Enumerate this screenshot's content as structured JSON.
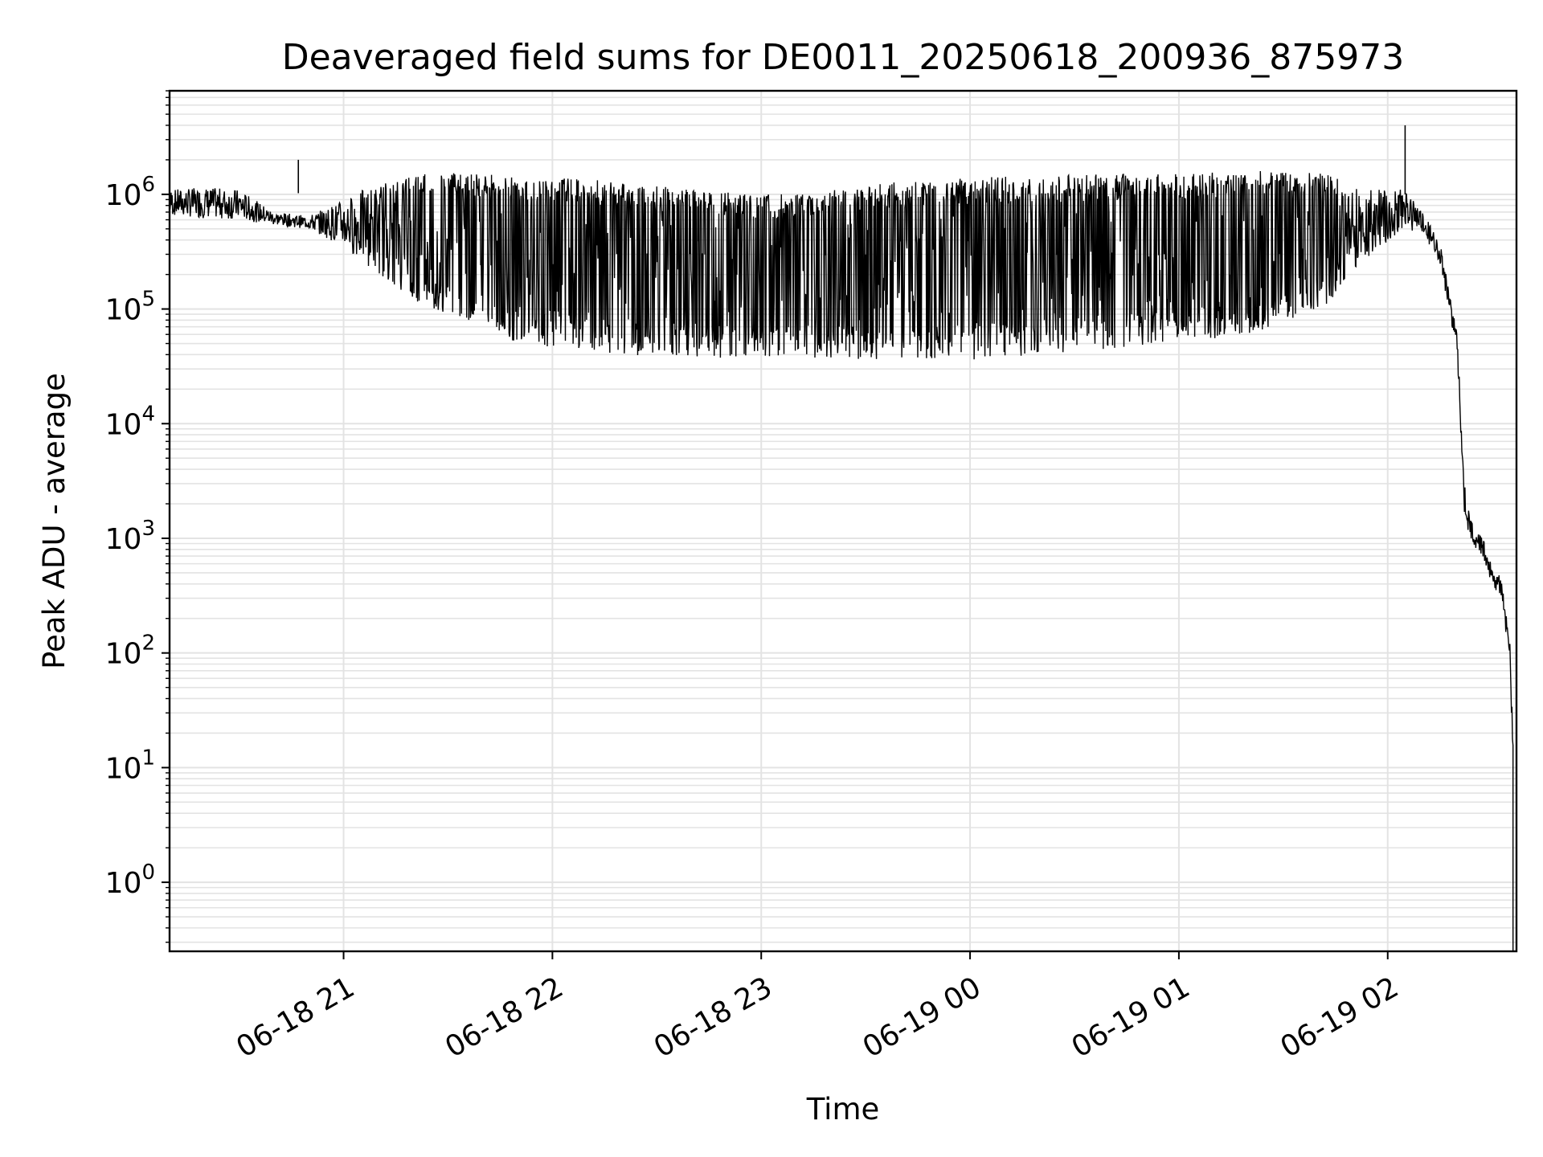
{
  "chart_data": {
    "type": "line",
    "title": "Deaveraged field sums for DE0011_20250618_200936_875973",
    "xlabel": "Time",
    "ylabel": "Peak ADU - average",
    "yscale": "log",
    "ylim": [
      0.25,
      8000000
    ],
    "xlim": [
      "2025-06-18 20:10",
      "2025-06-19 02:37"
    ],
    "grid": true,
    "grid_color": "#e3e3e3",
    "line_color": "#000000",
    "x_ticks": [
      {
        "at": "2025-06-18 21:00",
        "label": "06-18 21"
      },
      {
        "at": "2025-06-18 22:00",
        "label": "06-18 22"
      },
      {
        "at": "2025-06-18 23:00",
        "label": "06-18 23"
      },
      {
        "at": "2025-06-19 00:00",
        "label": "06-19 00"
      },
      {
        "at": "2025-06-19 01:00",
        "label": "06-19 01"
      },
      {
        "at": "2025-06-19 02:00",
        "label": "06-19 02"
      }
    ],
    "y_ticks": [
      {
        "value": 1000000,
        "base": "10",
        "exp": "6"
      },
      {
        "value": 100000,
        "base": "10",
        "exp": "5"
      },
      {
        "value": 10000,
        "base": "10",
        "exp": "4"
      },
      {
        "value": 1000,
        "base": "10",
        "exp": "3"
      },
      {
        "value": 100,
        "base": "10",
        "exp": "2"
      },
      {
        "value": 10,
        "base": "10",
        "exp": "1"
      },
      {
        "value": 1,
        "base": "10",
        "exp": "0"
      }
    ],
    "series": [
      {
        "upper_envelope": {
          "x": [
            "2025-06-18 20:10",
            "2025-06-18 20:20",
            "2025-06-18 20:30",
            "2025-06-18 20:40",
            "2025-06-18 20:50",
            "2025-06-18 21:00",
            "2025-06-18 21:10",
            "2025-06-18 21:20",
            "2025-06-18 21:30",
            "2025-06-18 21:40",
            "2025-06-18 21:50",
            "2025-06-18 22:00",
            "2025-06-18 22:20",
            "2025-06-18 22:40",
            "2025-06-18 23:00",
            "2025-06-18 23:20",
            "2025-06-18 23:40",
            "2025-06-19 00:00",
            "2025-06-19 00:20",
            "2025-06-19 00:40",
            "2025-06-19 01:00",
            "2025-06-19 01:20",
            "2025-06-19 01:40",
            "2025-06-19 01:55",
            "2025-06-19 02:05",
            "2025-06-19 02:10",
            "2025-06-19 02:15",
            "2025-06-19 02:20",
            "2025-06-19 02:22",
            "2025-06-19 02:24",
            "2025-06-19 02:27",
            "2025-06-19 02:30",
            "2025-06-19 02:33",
            "2025-06-19 02:35",
            "2025-06-19 02:36"
          ],
          "y": [
            1100000,
            1150000,
            1100000,
            700000,
            650000,
            900000,
            1300000,
            1500000,
            1600000,
            1500000,
            1450000,
            1450000,
            1300000,
            1100000,
            1000000,
            1100000,
            1300000,
            1400000,
            1450000,
            1500000,
            1500000,
            1600000,
            1600000,
            1100000,
            1100000,
            700000,
            400000,
            60000,
            3000,
            1400,
            1100,
            600,
            450,
            150,
            20
          ]
        },
        "lower_envelope": {
          "x": [
            "2025-06-18 20:10",
            "2025-06-18 20:20",
            "2025-06-18 20:30",
            "2025-06-18 20:40",
            "2025-06-18 20:50",
            "2025-06-18 21:00",
            "2025-06-18 21:10",
            "2025-06-18 21:20",
            "2025-06-18 21:30",
            "2025-06-18 21:40",
            "2025-06-18 21:50",
            "2025-06-18 22:00",
            "2025-06-18 22:20",
            "2025-06-18 22:40",
            "2025-06-18 23:00",
            "2025-06-18 23:20",
            "2025-06-18 23:40",
            "2025-06-19 00:00",
            "2025-06-19 00:20",
            "2025-06-19 00:40",
            "2025-06-19 01:00",
            "2025-06-19 01:20",
            "2025-06-19 01:40",
            "2025-06-19 01:55",
            "2025-06-19 02:05",
            "2025-06-19 02:10",
            "2025-06-19 02:15",
            "2025-06-19 02:20",
            "2025-06-19 02:22",
            "2025-06-19 02:24",
            "2025-06-19 02:27",
            "2025-06-19 02:30",
            "2025-06-19 02:33",
            "2025-06-19 02:35",
            "2025-06-19 02:36"
          ],
          "y": [
            650000,
            620000,
            600000,
            540000,
            500000,
            350000,
            200000,
            120000,
            90000,
            70000,
            50000,
            45000,
            40000,
            38000,
            37000,
            36000,
            35000,
            36000,
            40000,
            45000,
            50000,
            60000,
            90000,
            300000,
            500000,
            450000,
            250000,
            40000,
            1500,
            900,
            700,
            400,
            250,
            80,
            10
          ]
        }
      }
    ],
    "spikes": [
      {
        "x": "2025-06-18 20:47",
        "y": 2000000
      },
      {
        "x": "2025-06-19 02:05",
        "y": 4000000
      }
    ]
  }
}
